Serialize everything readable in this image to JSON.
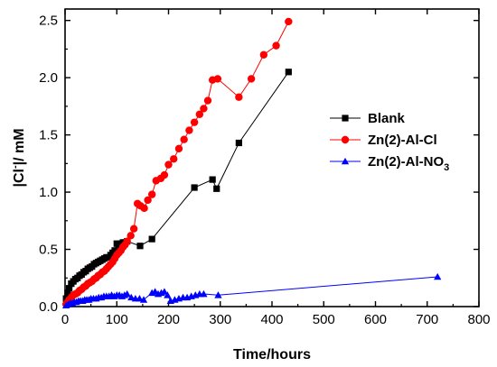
{
  "chart_data": {
    "type": "line",
    "xlabel": "Time/hours",
    "ylabel_parts": [
      "|Cl",
      "-",
      "|/ mM"
    ],
    "xlim": [
      0,
      800
    ],
    "ylim": [
      0,
      2.6
    ],
    "xticks": [
      0,
      100,
      200,
      300,
      400,
      500,
      600,
      700,
      800
    ],
    "yticks": [
      0.0,
      0.5,
      1.0,
      1.5,
      2.0,
      2.5
    ],
    "ytick_labels": [
      "0.0",
      "0.5",
      "1.0",
      "1.5",
      "2.0",
      "2.5"
    ],
    "grid": false,
    "legend_position": "center-right",
    "series": [
      {
        "name": "Blank",
        "legend_parts": [
          "Blank"
        ],
        "color": "#000000",
        "marker": "square",
        "x": [
          2,
          5,
          8,
          12,
          16,
          20,
          24,
          28,
          32,
          36,
          40,
          44,
          48,
          52,
          56,
          60,
          64,
          68,
          72,
          76,
          80,
          84,
          88,
          92,
          96,
          100,
          104,
          108,
          112,
          116,
          120,
          145,
          168,
          250,
          285,
          293,
          336,
          432
        ],
        "y": [
          0.07,
          0.12,
          0.16,
          0.2,
          0.22,
          0.24,
          0.25,
          0.27,
          0.28,
          0.3,
          0.31,
          0.33,
          0.34,
          0.35,
          0.37,
          0.38,
          0.39,
          0.4,
          0.41,
          0.42,
          0.43,
          0.43,
          0.45,
          0.47,
          0.49,
          0.55,
          0.54,
          0.55,
          0.56,
          0.56,
          0.57,
          0.53,
          0.59,
          1.04,
          1.11,
          1.03,
          1.43,
          2.05
        ]
      },
      {
        "name": "Zn(2)-Al-Cl",
        "legend_parts": [
          "Zn(2)-Al-Cl"
        ],
        "color": "#ff0000",
        "marker": "circle",
        "x": [
          2,
          5,
          8,
          12,
          16,
          20,
          24,
          28,
          32,
          36,
          40,
          44,
          48,
          52,
          56,
          60,
          64,
          68,
          72,
          76,
          80,
          84,
          88,
          92,
          96,
          100,
          104,
          108,
          112,
          116,
          120,
          127,
          133,
          140,
          146,
          153,
          160,
          168,
          176,
          185,
          192,
          200,
          210,
          220,
          230,
          240,
          250,
          260,
          268,
          276,
          285,
          295,
          336,
          360,
          384,
          408,
          432
        ],
        "y": [
          0.02,
          0.04,
          0.06,
          0.08,
          0.1,
          0.11,
          0.12,
          0.14,
          0.15,
          0.17,
          0.18,
          0.2,
          0.21,
          0.22,
          0.24,
          0.25,
          0.27,
          0.28,
          0.3,
          0.31,
          0.33,
          0.35,
          0.37,
          0.39,
          0.42,
          0.45,
          0.47,
          0.49,
          0.52,
          0.54,
          0.57,
          0.62,
          0.68,
          0.9,
          0.88,
          0.86,
          0.93,
          0.98,
          1.1,
          1.12,
          1.15,
          1.24,
          1.29,
          1.38,
          1.46,
          1.54,
          1.61,
          1.68,
          1.73,
          1.8,
          1.98,
          1.99,
          1.83,
          1.99,
          2.2,
          2.28,
          2.49
        ]
      },
      {
        "name": "Zn(2)-Al-NO3",
        "legend_parts": [
          "Zn(2)-Al-NO",
          "3"
        ],
        "color": "#0000ff",
        "marker": "triangle",
        "x": [
          2,
          6,
          10,
          14,
          18,
          22,
          26,
          30,
          34,
          38,
          42,
          46,
          50,
          55,
          60,
          65,
          70,
          75,
          80,
          85,
          90,
          95,
          100,
          105,
          110,
          115,
          120,
          128,
          136,
          144,
          152,
          168,
          174,
          180,
          186,
          192,
          198,
          204,
          212,
          220,
          228,
          236,
          244,
          252,
          260,
          268,
          296,
          720
        ],
        "y": [
          0.01,
          0.02,
          0.03,
          0.03,
          0.04,
          0.04,
          0.05,
          0.05,
          0.05,
          0.06,
          0.06,
          0.06,
          0.07,
          0.07,
          0.07,
          0.08,
          0.08,
          0.09,
          0.09,
          0.09,
          0.1,
          0.09,
          0.1,
          0.1,
          0.09,
          0.1,
          0.11,
          0.08,
          0.07,
          0.07,
          0.06,
          0.12,
          0.13,
          0.11,
          0.12,
          0.13,
          0.1,
          0.05,
          0.06,
          0.07,
          0.08,
          0.08,
          0.09,
          0.1,
          0.11,
          0.11,
          0.1,
          0.26
        ]
      }
    ]
  }
}
